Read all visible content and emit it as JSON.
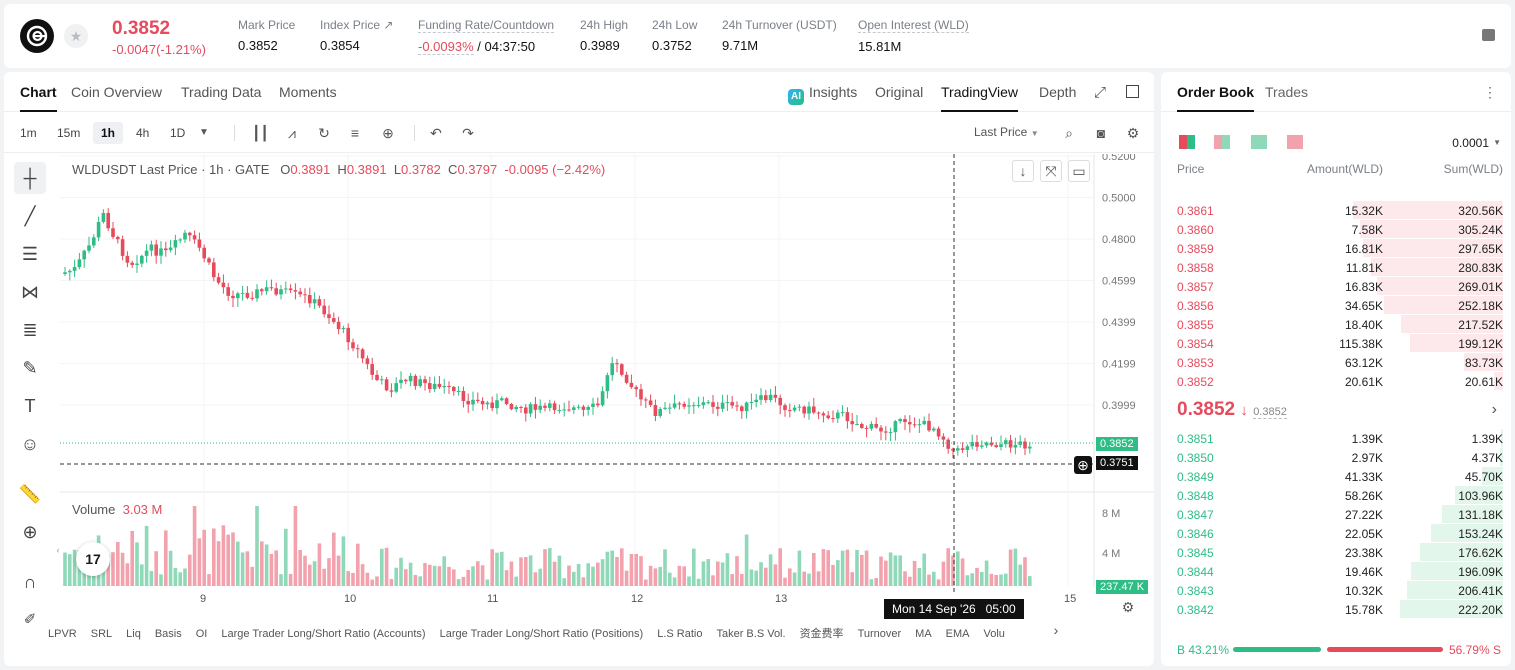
{
  "header": {
    "last_price": "0.3852",
    "change": "-0.0047(-1.21%)",
    "stats": [
      {
        "label": "Mark Price",
        "value": "0.3852"
      },
      {
        "label": "Index Price ↗",
        "value": "0.3854"
      },
      {
        "label": "Funding Rate/Countdown",
        "value_neg": "-0.0093%",
        "value": " / 04:37:50"
      },
      {
        "label": "24h High",
        "value": "0.3989"
      },
      {
        "label": "24h Low",
        "value": "0.3752"
      },
      {
        "label": "24h Turnover (USDT)",
        "value": "9.71M"
      },
      {
        "label": "Open Interest (WLD)",
        "value": "15.81M"
      }
    ]
  },
  "chart_tabs": [
    "Chart",
    "Coin Overview",
    "Trading Data",
    "Moments"
  ],
  "view_tabs": [
    "Insights",
    "Original",
    "TradingView",
    "Depth"
  ],
  "ai_badge": "AI",
  "timeframes": [
    "1m",
    "15m",
    "1h",
    "4h",
    "1D"
  ],
  "last_price_select": "Last Price",
  "legend": {
    "symbol": "WLDUSDT Last Price · 1h · GATE",
    "o_label": "O",
    "o": "0.3891",
    "h_label": "H",
    "h": "0.3891",
    "l_label": "L",
    "l": "0.3782",
    "c_label": "C",
    "c": "0.3797",
    "chg": "-0.0095 (−2.42%)"
  },
  "volume_legend": {
    "label": "Volume",
    "value": "3.03 M"
  },
  "y_axis": [
    "0.5200",
    "0.5000",
    "0.4800",
    "0.4599",
    "0.4399",
    "0.4199",
    "0.3999"
  ],
  "vol_axis": [
    "8 M",
    "4 M"
  ],
  "x_axis": [
    "9",
    "10",
    "11",
    "12",
    "13",
    "15"
  ],
  "price_tag": "0.3852",
  "cursor_tag": "0.3751",
  "vol_tag": "237.47 K",
  "cursor_date": "Mon 14 Sep '26   05:00",
  "tv_logo": "17",
  "indicators": [
    "LPVR",
    "SRL",
    "Liq",
    "Basis",
    "OI",
    "Large Trader Long/Short Ratio (Accounts)",
    "Large Trader Long/Short Ratio (Positions)",
    "L.S Ratio",
    "Taker B.S Vol.",
    "资金费率",
    "Turnover",
    "MA",
    "EMA",
    "Volu"
  ],
  "orderbook": {
    "tabs": [
      "Order Book",
      "Trades"
    ],
    "precision": "0.0001",
    "headers": {
      "price": "Price",
      "amount": "Amount(WLD)",
      "sum": "Sum(WLD)"
    },
    "asks": [
      {
        "price": "0.3861",
        "amount": "15.32K",
        "sum": "320.56K",
        "depth": 1.0
      },
      {
        "price": "0.3860",
        "amount": "7.58K",
        "sum": "305.24K",
        "depth": 0.95
      },
      {
        "price": "0.3859",
        "amount": "16.81K",
        "sum": "297.65K",
        "depth": 0.93
      },
      {
        "price": "0.3858",
        "amount": "11.81K",
        "sum": "280.83K",
        "depth": 0.88
      },
      {
        "price": "0.3857",
        "amount": "16.83K",
        "sum": "269.01K",
        "depth": 0.84
      },
      {
        "price": "0.3856",
        "amount": "34.65K",
        "sum": "252.18K",
        "depth": 0.79
      },
      {
        "price": "0.3855",
        "amount": "18.40K",
        "sum": "217.52K",
        "depth": 0.68
      },
      {
        "price": "0.3854",
        "amount": "115.38K",
        "sum": "199.12K",
        "depth": 0.62
      },
      {
        "price": "0.3853",
        "amount": "63.12K",
        "sum": "83.73K",
        "depth": 0.26
      },
      {
        "price": "0.3852",
        "amount": "20.61K",
        "sum": "20.61K",
        "depth": 0.06
      }
    ],
    "mid_price": "0.3852",
    "mid_arrow": "↓",
    "mid_mark": "0.3852",
    "bids": [
      {
        "price": "0.3851",
        "amount": "1.39K",
        "sum": "1.39K",
        "depth": 0.01
      },
      {
        "price": "0.3850",
        "amount": "2.97K",
        "sum": "4.37K",
        "depth": 0.02
      },
      {
        "price": "0.3849",
        "amount": "41.33K",
        "sum": "45.70K",
        "depth": 0.14
      },
      {
        "price": "0.3848",
        "amount": "58.26K",
        "sum": "103.96K",
        "depth": 0.32
      },
      {
        "price": "0.3847",
        "amount": "27.22K",
        "sum": "131.18K",
        "depth": 0.41
      },
      {
        "price": "0.3846",
        "amount": "22.05K",
        "sum": "153.24K",
        "depth": 0.48
      },
      {
        "price": "0.3845",
        "amount": "23.38K",
        "sum": "176.62K",
        "depth": 0.55
      },
      {
        "price": "0.3844",
        "amount": "19.46K",
        "sum": "196.09K",
        "depth": 0.61
      },
      {
        "price": "0.3843",
        "amount": "10.32K",
        "sum": "206.41K",
        "depth": 0.64
      },
      {
        "price": "0.3842",
        "amount": "15.78K",
        "sum": "222.20K",
        "depth": 0.69
      }
    ],
    "buy_label": "B 43.21%",
    "sell_label": "56.79% S",
    "buy_ratio": 0.4321
  },
  "colors": {
    "up": "#2ebd85",
    "down": "#e64b5c",
    "up_light": "#8fd8b8",
    "down_light": "#f2a2ad"
  }
}
